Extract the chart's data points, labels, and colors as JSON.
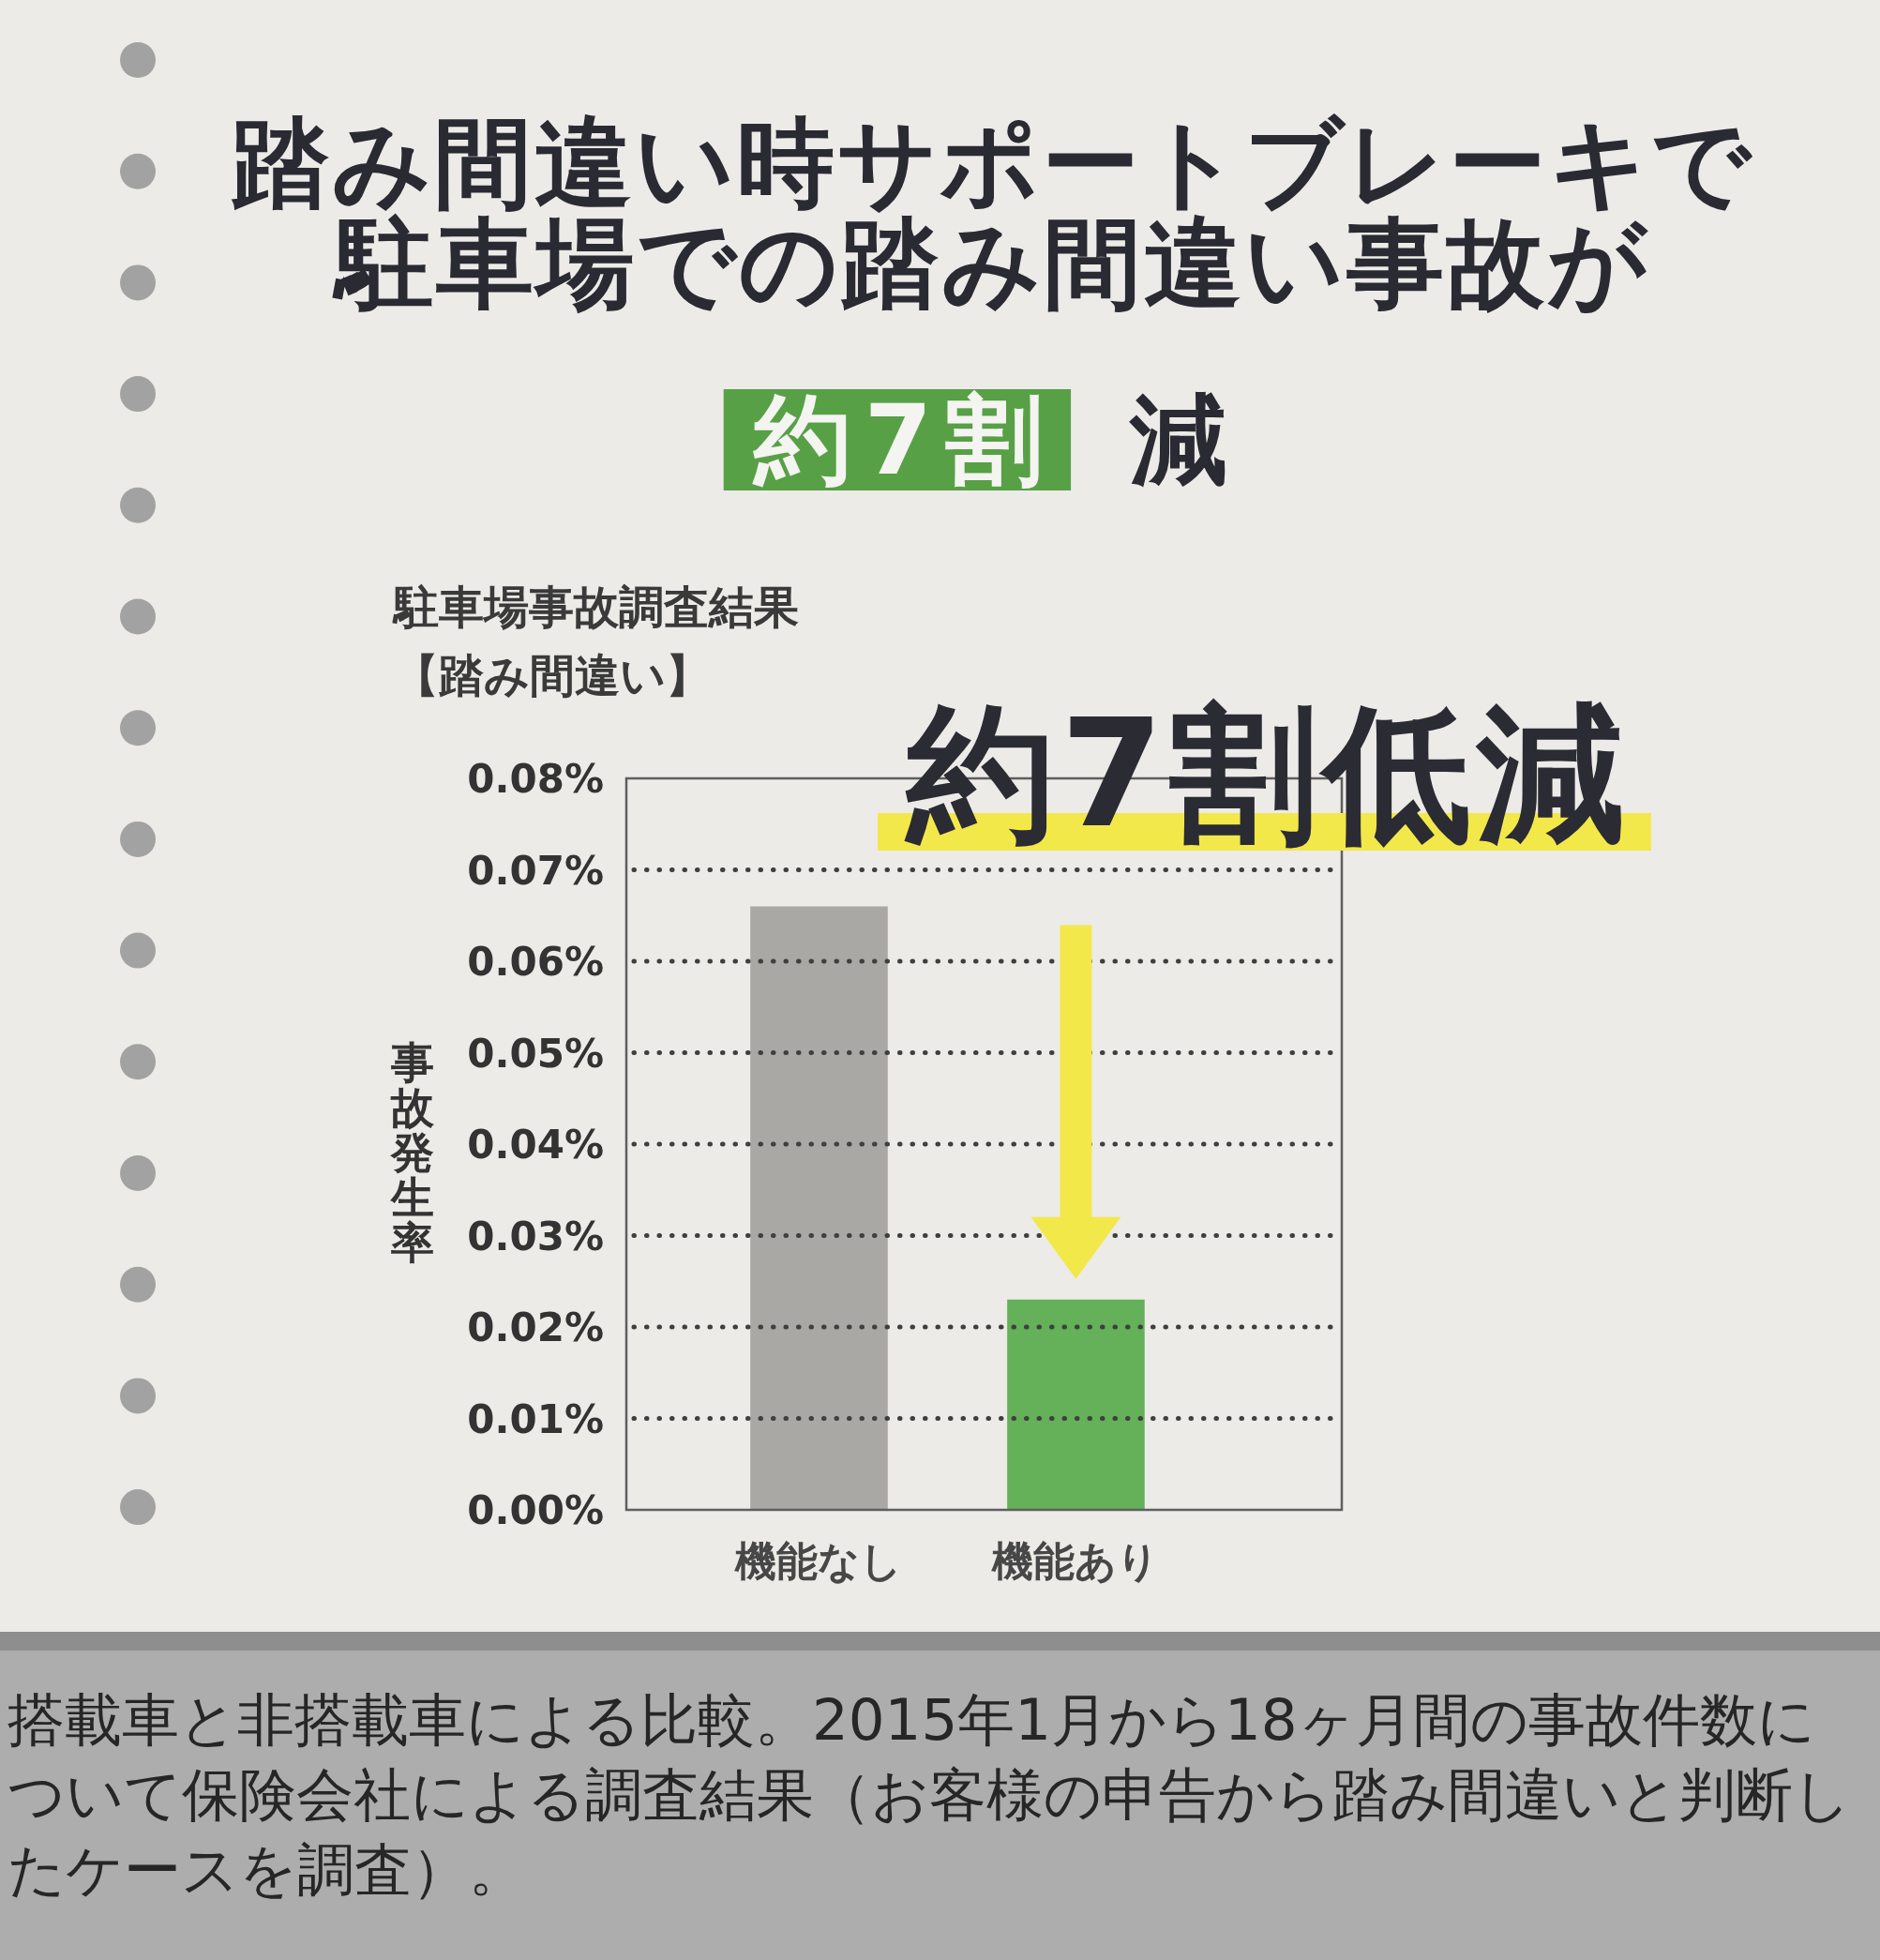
{
  "chart_data": {
    "type": "bar",
    "title": "踏み間違い時サポートブレーキで駐車場での踏み間違い事故が",
    "subtitle": "駐車場事故調査結果【踏み間違い】",
    "ylabel": "事故発生率",
    "categories": [
      "機能なし",
      "機能あり"
    ],
    "values": [
      0.066,
      0.023
    ],
    "colors": [
      "#aaa8a5",
      "#64b159"
    ],
    "ylim": [
      0,
      0.08
    ],
    "yticks": [
      {
        "value": 0,
        "label": "0.00%"
      },
      {
        "value": 0.01,
        "label": "0.01%"
      },
      {
        "value": 0.02,
        "label": "0.02%"
      },
      {
        "value": 0.03,
        "label": "0.03%"
      },
      {
        "value": 0.04,
        "label": "0.04%"
      },
      {
        "value": 0.05,
        "label": "0.05%"
      },
      {
        "value": 0.06,
        "label": "0.06%"
      },
      {
        "value": 0.07,
        "label": "0.07%"
      },
      {
        "value": 0.08,
        "label": "0.08%"
      }
    ],
    "grid": "y",
    "annotations": [
      "約7割 減",
      "約7割低減",
      "搭載車と非搭載車による比較。2015年1月から18ヶ月間の事故件数について保険会社による調査結果（お客様の申告から踏み間違いと判断したケースを調査）。"
    ]
  }
}
